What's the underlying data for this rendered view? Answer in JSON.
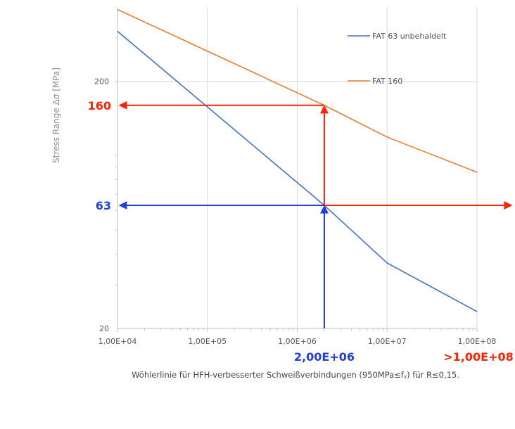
{
  "chart_data": {
    "type": "line",
    "x_scale": "log",
    "y_scale": "log",
    "xlim": [
      10000,
      100000000
    ],
    "ylim": [
      20,
      400
    ],
    "ylabel": "Stress Range Δσ [MPa]",
    "x_tick_labels": [
      "1,00E+04",
      "1,00E+05",
      "1,00E+06",
      "1,00E+07",
      "1,00E+08"
    ],
    "x_tick_values": [
      10000,
      100000,
      1000000,
      10000000,
      100000000
    ],
    "y_tick_labels": [
      "20",
      "200"
    ],
    "y_tick_values": [
      20,
      200
    ],
    "grid": "vertical",
    "legend_position": "top-right",
    "series": [
      {
        "name": "FAT 63 unbehaldelt",
        "color": "#4472C4",
        "x": [
          10000,
          2000000,
          10000000,
          100000000
        ],
        "y": [
          319,
          63,
          36.8,
          23.4
        ]
      },
      {
        "name": "FAT 160",
        "color": "#ED7D31",
        "x": [
          10000,
          2000000,
          10000000,
          100000000
        ],
        "y": [
          391,
          160,
          119,
          85.8
        ]
      }
    ],
    "annotations": [
      {
        "text": "160",
        "color": "#FF2200",
        "kind": "y-value",
        "value": 160
      },
      {
        "text": "63",
        "color": "#1F3FE0",
        "kind": "y-value",
        "value": 63
      },
      {
        "text": "2,00E+06",
        "color": "#1F3FE0",
        "kind": "x-value",
        "value": 2000000
      },
      {
        "text": ">1,00E+08",
        "color": "#FF2200",
        "kind": "x-value",
        "value": 100000000
      }
    ],
    "caption": "Wöhlerlinie für HFH-verbesserter Schweißverbindungen (950MPa≤fᵧ) für R≤0,15."
  }
}
